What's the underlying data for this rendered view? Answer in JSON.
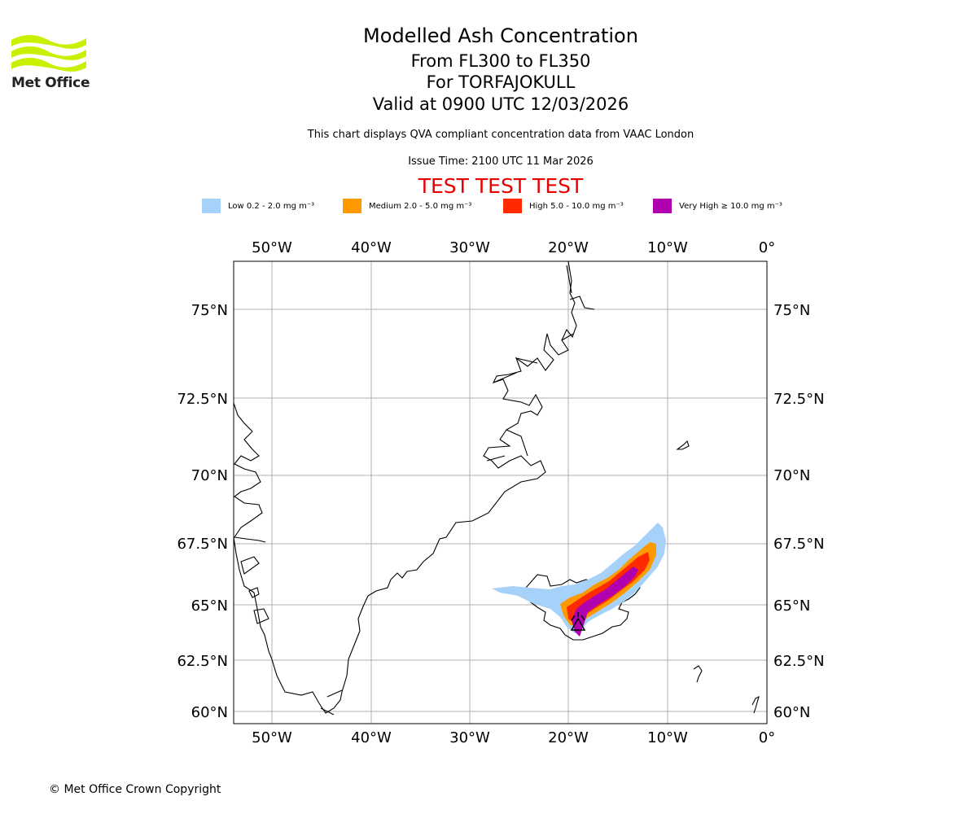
{
  "header": {
    "logo_text": "Met Office",
    "title": "Modelled Ash Concentration",
    "flight_levels": "From FL300 to FL350",
    "volcano": "For TORFAJOKULL",
    "valid_time": "Valid at 0900 UTC 12/03/2026",
    "description": "This chart displays QVA compliant concentration data from VAAC London",
    "issue_time": "Issue Time: 2100 UTC 11 Mar 2026",
    "test_banner": "TEST TEST TEST"
  },
  "legend": [
    {
      "label": "Low 0.2 - 2.0 mg m⁻³",
      "color": "#a6d2fa"
    },
    {
      "label": "Medium 2.0 - 5.0 mg m⁻³",
      "color": "#ff9900"
    },
    {
      "label": "High 5.0 - 10.0 mg m⁻³",
      "color": "#ff2a00"
    },
    {
      "label": "Very High ≥ 10.0 mg m⁻³",
      "color": "#b000b0"
    }
  ],
  "map": {
    "lon_labels": [
      "50°W",
      "40°W",
      "30°W",
      "20°W",
      "10°W",
      "0°"
    ],
    "lat_labels": [
      "75°N",
      "72.5°N",
      "70°N",
      "67.5°N",
      "65°N",
      "62.5°N",
      "60°N"
    ],
    "volcano_marker": "triangle-marker",
    "coastline_color": "#000000",
    "grid_color": "#b0b0b0"
  },
  "footer": {
    "copyright": "© Met Office Crown Copyright"
  }
}
